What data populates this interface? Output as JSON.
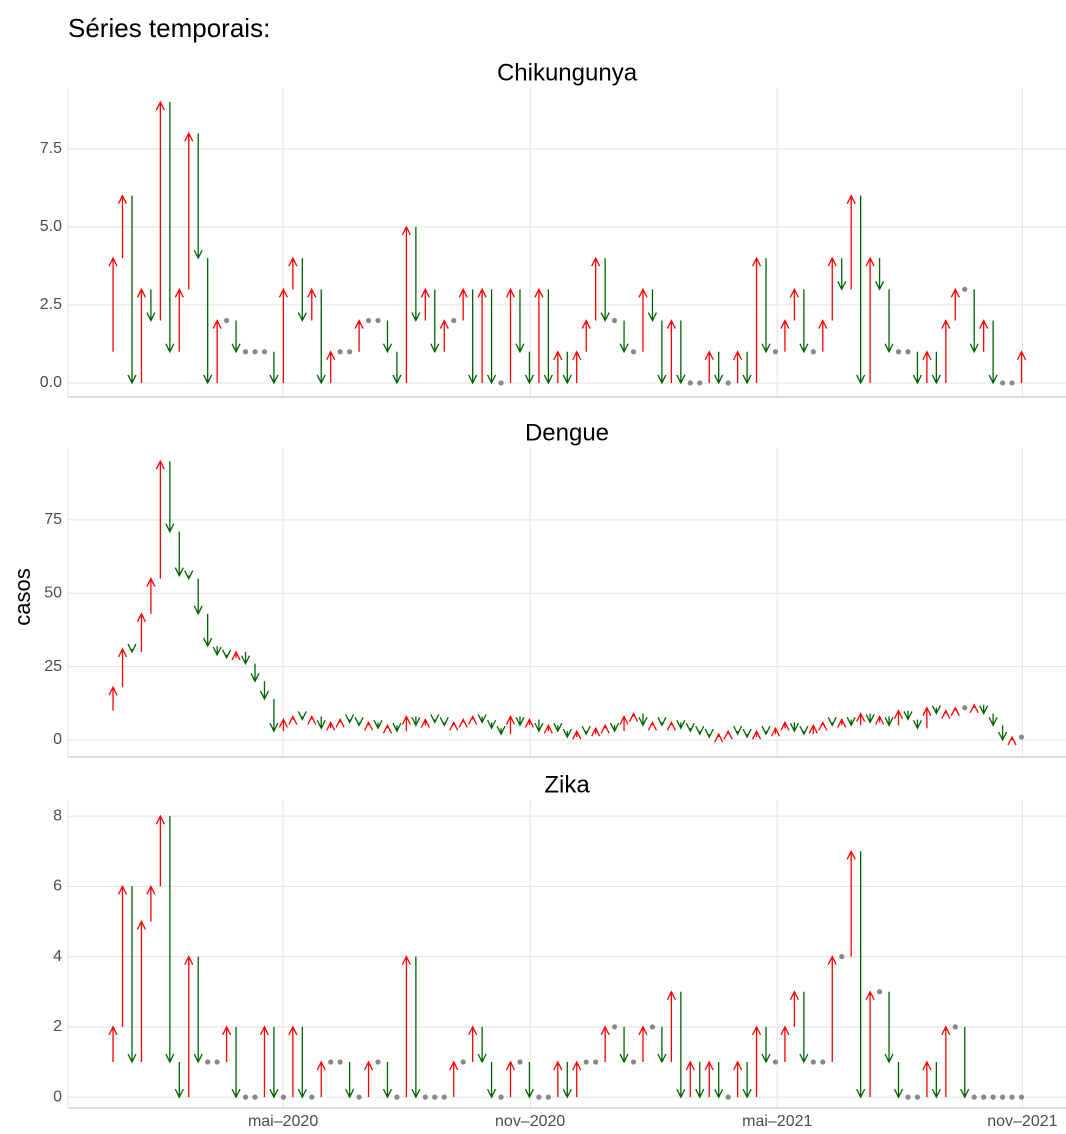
{
  "title": "Séries temporais:",
  "chart_data": [
    {
      "type": "arrow",
      "title": "Chikungunya",
      "values": [
        1,
        4,
        6,
        0,
        3,
        2,
        9,
        1,
        3,
        8,
        4,
        0,
        2,
        2,
        1,
        1,
        1,
        1,
        0,
        3,
        4,
        2,
        3,
        0,
        1,
        1,
        1,
        2,
        2,
        2,
        1,
        0,
        5,
        2,
        3,
        1,
        2,
        2,
        3,
        0,
        3,
        0,
        0,
        3,
        1,
        0,
        3,
        0,
        1,
        0,
        1,
        2,
        4,
        2,
        2,
        1,
        1,
        3,
        2,
        0,
        2,
        0,
        0,
        0,
        1,
        0,
        0,
        1,
        0,
        4,
        1,
        1,
        2,
        3,
        1,
        1,
        2,
        4,
        3,
        6,
        0,
        4,
        3,
        1,
        1,
        1,
        0,
        1,
        0,
        2,
        3,
        3,
        1,
        2,
        0,
        0,
        0,
        1
      ],
      "ylim": [
        -0.45,
        9.45
      ],
      "yticks": [
        {
          "value": 0,
          "label": "0.0"
        },
        2.5,
        {
          "value": 5,
          "label": "5.0"
        },
        7.5
      ],
      "up_color": "#ff0000",
      "down_color": "#006400",
      "same_color": "#888888",
      "grid": true
    },
    {
      "type": "arrow",
      "title": "Dengue",
      "y_label": "casos",
      "values": [
        10,
        18,
        31,
        30,
        43,
        55,
        95,
        71,
        56,
        55,
        43,
        32,
        29,
        28,
        30,
        26,
        20,
        14,
        3,
        7,
        8,
        7,
        8,
        4,
        6,
        7,
        6,
        5,
        6,
        4,
        5,
        3,
        8,
        5,
        7,
        6,
        5,
        6,
        7,
        8,
        6,
        4,
        2,
        8,
        5,
        7,
        3,
        5,
        3,
        1,
        3,
        2,
        4,
        5,
        3,
        8,
        9,
        5,
        6,
        5,
        6,
        4,
        3,
        2,
        1,
        2,
        3,
        2,
        1,
        3,
        2,
        4,
        6,
        3,
        2,
        5,
        6,
        5,
        7,
        5,
        9,
        6,
        8,
        5,
        10,
        7,
        4,
        11,
        9,
        10,
        11,
        11,
        12,
        9,
        5,
        0,
        1,
        1
      ],
      "ylim": [
        -5.8,
        99.5
      ],
      "yticks": [
        0,
        25,
        50,
        75
      ],
      "up_color": "#ff0000",
      "down_color": "#006400",
      "same_color": "#888888",
      "grid": true
    },
    {
      "type": "arrow",
      "title": "Zika",
      "values": [
        1,
        2,
        6,
        1,
        5,
        6,
        8,
        1,
        0,
        4,
        1,
        1,
        1,
        2,
        0,
        0,
        0,
        2,
        0,
        0,
        2,
        0,
        0,
        1,
        1,
        1,
        0,
        0,
        1,
        1,
        0,
        0,
        4,
        0,
        0,
        0,
        0,
        1,
        1,
        2,
        1,
        0,
        0,
        1,
        1,
        0,
        0,
        0,
        1,
        0,
        1,
        1,
        1,
        2,
        2,
        1,
        1,
        2,
        2,
        1,
        3,
        0,
        1,
        0,
        1,
        0,
        0,
        1,
        0,
        2,
        1,
        1,
        2,
        3,
        1,
        1,
        1,
        4,
        4,
        7,
        0,
        3,
        3,
        1,
        0,
        0,
        0,
        1,
        0,
        2,
        2,
        0,
        0,
        0,
        0,
        0,
        0,
        0
      ],
      "ylim": [
        -0.31,
        8.46
      ],
      "yticks": [
        0,
        2,
        4,
        6,
        8
      ],
      "xlim": [
        -3.76,
        101.7
      ],
      "xticks": [
        {
          "value": 18.97,
          "label": "mai–2020"
        },
        {
          "value": 45.08,
          "label": "nov–2020"
        },
        {
          "value": 71.19,
          "label": "mai–2021"
        },
        {
          "value": 97.09,
          "label": "nov–2021"
        }
      ],
      "up_color": "#ff0000",
      "down_color": "#006400",
      "same_color": "#888888",
      "grid": true
    }
  ]
}
